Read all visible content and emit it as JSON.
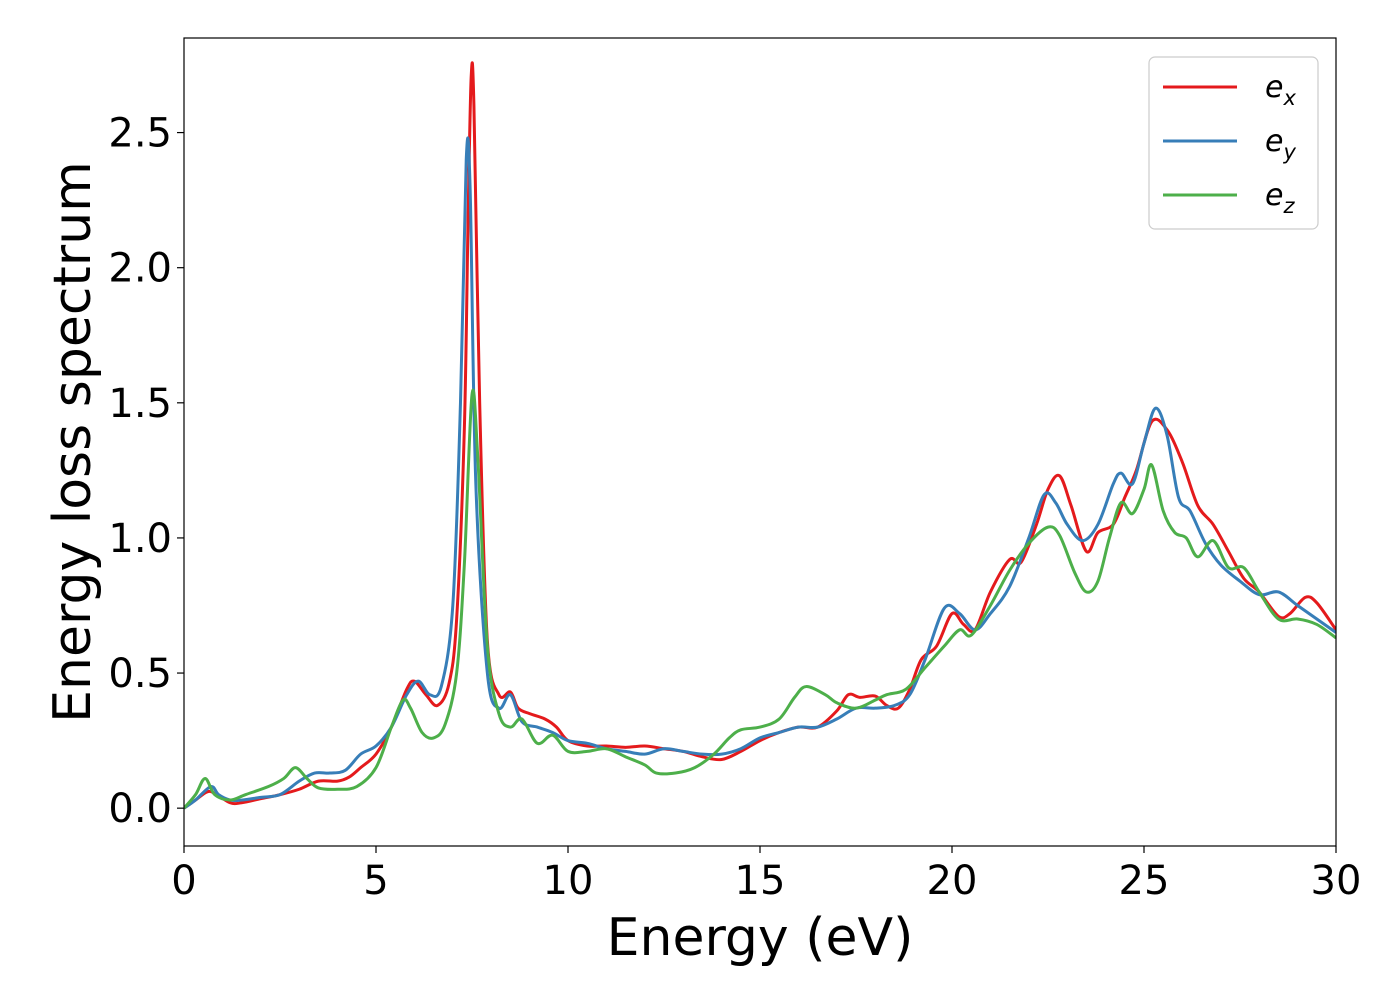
{
  "chart_data": {
    "type": "line",
    "title": "",
    "xlabel": "Energy (eV)",
    "ylabel": "Energy loss spectrum",
    "xlim": [
      0,
      30
    ],
    "ylim": [
      -0.14,
      2.85
    ],
    "xticks": [
      0,
      5,
      10,
      15,
      20,
      25,
      30
    ],
    "xtick_labels": [
      "0",
      "5",
      "10",
      "15",
      "20",
      "25",
      "30"
    ],
    "yticks": [
      0.0,
      0.5,
      1.0,
      1.5,
      2.0,
      2.5
    ],
    "ytick_labels": [
      "0.0",
      "0.5",
      "1.0",
      "1.5",
      "2.0",
      "2.5"
    ],
    "grid": false,
    "legend_position": "top-right",
    "series": [
      {
        "name": "ex",
        "legend_base": "e",
        "legend_sub": "x",
        "color": "#e41a1c",
        "points": [
          [
            0,
            0
          ],
          [
            0.3,
            0.03
          ],
          [
            0.6,
            0.06
          ],
          [
            0.8,
            0.055
          ],
          [
            1.2,
            0.02
          ],
          [
            1.5,
            0.02
          ],
          [
            2,
            0.035
          ],
          [
            2.5,
            0.05
          ],
          [
            3,
            0.07
          ],
          [
            3.5,
            0.1
          ],
          [
            4,
            0.1
          ],
          [
            4.3,
            0.115
          ],
          [
            4.6,
            0.15
          ],
          [
            5,
            0.2
          ],
          [
            5.4,
            0.3
          ],
          [
            5.8,
            0.44
          ],
          [
            6,
            0.47
          ],
          [
            6.3,
            0.42
          ],
          [
            6.6,
            0.38
          ],
          [
            6.9,
            0.46
          ],
          [
            7.1,
            0.7
          ],
          [
            7.3,
            1.4
          ],
          [
            7.4,
            2.2
          ],
          [
            7.48,
            2.71
          ],
          [
            7.55,
            2.6
          ],
          [
            7.7,
            1.5
          ],
          [
            7.9,
            0.62
          ],
          [
            8.2,
            0.42
          ],
          [
            8.5,
            0.43
          ],
          [
            8.7,
            0.37
          ],
          [
            9,
            0.35
          ],
          [
            9.4,
            0.33
          ],
          [
            9.7,
            0.3
          ],
          [
            10,
            0.25
          ],
          [
            10.5,
            0.23
          ],
          [
            11,
            0.23
          ],
          [
            11.5,
            0.225
          ],
          [
            12,
            0.23
          ],
          [
            12.5,
            0.22
          ],
          [
            13,
            0.21
          ],
          [
            13.5,
            0.19
          ],
          [
            14,
            0.18
          ],
          [
            14.5,
            0.21
          ],
          [
            15,
            0.25
          ],
          [
            15.5,
            0.28
          ],
          [
            16,
            0.3
          ],
          [
            16.5,
            0.3
          ],
          [
            17,
            0.36
          ],
          [
            17.3,
            0.42
          ],
          [
            17.6,
            0.41
          ],
          [
            18,
            0.415
          ],
          [
            18.3,
            0.38
          ],
          [
            18.6,
            0.37
          ],
          [
            18.9,
            0.44
          ],
          [
            19.2,
            0.55
          ],
          [
            19.6,
            0.6
          ],
          [
            20,
            0.72
          ],
          [
            20.3,
            0.68
          ],
          [
            20.6,
            0.66
          ],
          [
            21,
            0.8
          ],
          [
            21.5,
            0.92
          ],
          [
            21.8,
            0.91
          ],
          [
            22.2,
            1.05
          ],
          [
            22.5,
            1.18
          ],
          [
            22.8,
            1.23
          ],
          [
            23.1,
            1.12
          ],
          [
            23.5,
            0.95
          ],
          [
            23.8,
            1.02
          ],
          [
            24.2,
            1.05
          ],
          [
            24.5,
            1.15
          ],
          [
            24.8,
            1.25
          ],
          [
            25.2,
            1.43
          ],
          [
            25.6,
            1.4
          ],
          [
            26,
            1.28
          ],
          [
            26.4,
            1.12
          ],
          [
            26.8,
            1.05
          ],
          [
            27.2,
            0.95
          ],
          [
            27.6,
            0.85
          ],
          [
            28,
            0.8
          ],
          [
            28.5,
            0.71
          ],
          [
            28.8,
            0.72
          ],
          [
            29.2,
            0.78
          ],
          [
            29.5,
            0.76
          ],
          [
            30,
            0.66
          ]
        ]
      },
      {
        "name": "ey",
        "legend_base": "e",
        "legend_sub": "y",
        "color": "#377eb8",
        "points": [
          [
            0,
            0
          ],
          [
            0.3,
            0.03
          ],
          [
            0.7,
            0.08
          ],
          [
            0.9,
            0.05
          ],
          [
            1.2,
            0.03
          ],
          [
            1.5,
            0.03
          ],
          [
            2,
            0.04
          ],
          [
            2.5,
            0.05
          ],
          [
            3,
            0.1
          ],
          [
            3.4,
            0.13
          ],
          [
            3.8,
            0.13
          ],
          [
            4.2,
            0.14
          ],
          [
            4.6,
            0.2
          ],
          [
            5,
            0.23
          ],
          [
            5.4,
            0.3
          ],
          [
            5.8,
            0.42
          ],
          [
            6.1,
            0.47
          ],
          [
            6.4,
            0.42
          ],
          [
            6.7,
            0.45
          ],
          [
            7,
            0.75
          ],
          [
            7.2,
            1.5
          ],
          [
            7.35,
            2.4
          ],
          [
            7.45,
            2.3
          ],
          [
            7.6,
            1.2
          ],
          [
            7.9,
            0.5
          ],
          [
            8.2,
            0.37
          ],
          [
            8.5,
            0.42
          ],
          [
            8.8,
            0.32
          ],
          [
            9.2,
            0.3
          ],
          [
            9.6,
            0.28
          ],
          [
            10,
            0.25
          ],
          [
            10.5,
            0.24
          ],
          [
            11,
            0.22
          ],
          [
            11.5,
            0.21
          ],
          [
            12,
            0.2
          ],
          [
            12.5,
            0.22
          ],
          [
            13,
            0.21
          ],
          [
            13.5,
            0.2
          ],
          [
            14,
            0.2
          ],
          [
            14.5,
            0.22
          ],
          [
            15,
            0.26
          ],
          [
            15.5,
            0.28
          ],
          [
            16,
            0.3
          ],
          [
            16.5,
            0.3
          ],
          [
            17,
            0.33
          ],
          [
            17.5,
            0.37
          ],
          [
            18,
            0.37
          ],
          [
            18.5,
            0.38
          ],
          [
            18.9,
            0.42
          ],
          [
            19.3,
            0.55
          ],
          [
            19.8,
            0.74
          ],
          [
            20.2,
            0.72
          ],
          [
            20.6,
            0.66
          ],
          [
            21,
            0.72
          ],
          [
            21.5,
            0.82
          ],
          [
            22,
            1.0
          ],
          [
            22.4,
            1.16
          ],
          [
            22.7,
            1.13
          ],
          [
            23,
            1.05
          ],
          [
            23.4,
            0.99
          ],
          [
            23.8,
            1.05
          ],
          [
            24.2,
            1.2
          ],
          [
            24.4,
            1.24
          ],
          [
            24.7,
            1.2
          ],
          [
            25,
            1.35
          ],
          [
            25.3,
            1.48
          ],
          [
            25.6,
            1.38
          ],
          [
            25.9,
            1.15
          ],
          [
            26.2,
            1.1
          ],
          [
            26.6,
            0.98
          ],
          [
            27,
            0.9
          ],
          [
            27.5,
            0.84
          ],
          [
            28,
            0.79
          ],
          [
            28.5,
            0.8
          ],
          [
            29,
            0.75
          ],
          [
            29.5,
            0.7
          ],
          [
            30,
            0.65
          ]
        ]
      },
      {
        "name": "ez",
        "legend_base": "e",
        "legend_sub": "z",
        "color": "#4daf4a",
        "points": [
          [
            0,
            0
          ],
          [
            0.3,
            0.05
          ],
          [
            0.55,
            0.11
          ],
          [
            0.8,
            0.05
          ],
          [
            1.2,
            0.03
          ],
          [
            1.6,
            0.05
          ],
          [
            2.2,
            0.08
          ],
          [
            2.6,
            0.11
          ],
          [
            2.9,
            0.15
          ],
          [
            3.2,
            0.11
          ],
          [
            3.5,
            0.075
          ],
          [
            4,
            0.07
          ],
          [
            4.5,
            0.08
          ],
          [
            5,
            0.15
          ],
          [
            5.4,
            0.3
          ],
          [
            5.7,
            0.4
          ],
          [
            5.9,
            0.37
          ],
          [
            6.2,
            0.28
          ],
          [
            6.5,
            0.26
          ],
          [
            6.8,
            0.31
          ],
          [
            7.1,
            0.5
          ],
          [
            7.3,
            0.9
          ],
          [
            7.5,
            1.53
          ],
          [
            7.65,
            1.3
          ],
          [
            7.9,
            0.6
          ],
          [
            8.2,
            0.35
          ],
          [
            8.5,
            0.3
          ],
          [
            8.8,
            0.33
          ],
          [
            9.2,
            0.24
          ],
          [
            9.6,
            0.27
          ],
          [
            10,
            0.21
          ],
          [
            10.5,
            0.21
          ],
          [
            11,
            0.22
          ],
          [
            11.5,
            0.19
          ],
          [
            12,
            0.16
          ],
          [
            12.3,
            0.13
          ],
          [
            12.8,
            0.13
          ],
          [
            13.3,
            0.15
          ],
          [
            13.8,
            0.2
          ],
          [
            14.2,
            0.26
          ],
          [
            14.5,
            0.29
          ],
          [
            15,
            0.3
          ],
          [
            15.5,
            0.33
          ],
          [
            15.9,
            0.41
          ],
          [
            16.2,
            0.45
          ],
          [
            16.7,
            0.42
          ],
          [
            17,
            0.39
          ],
          [
            17.5,
            0.37
          ],
          [
            18,
            0.4
          ],
          [
            18.3,
            0.42
          ],
          [
            18.8,
            0.44
          ],
          [
            19.3,
            0.52
          ],
          [
            19.8,
            0.6
          ],
          [
            20.2,
            0.66
          ],
          [
            20.5,
            0.64
          ],
          [
            21,
            0.75
          ],
          [
            21.5,
            0.88
          ],
          [
            22,
            0.98
          ],
          [
            22.5,
            1.04
          ],
          [
            22.8,
            1.01
          ],
          [
            23.2,
            0.87
          ],
          [
            23.5,
            0.8
          ],
          [
            23.8,
            0.84
          ],
          [
            24.1,
            1.0
          ],
          [
            24.4,
            1.13
          ],
          [
            24.7,
            1.09
          ],
          [
            25,
            1.18
          ],
          [
            25.2,
            1.27
          ],
          [
            25.5,
            1.1
          ],
          [
            25.8,
            1.02
          ],
          [
            26.1,
            1.0
          ],
          [
            26.4,
            0.93
          ],
          [
            26.8,
            0.99
          ],
          [
            27.2,
            0.89
          ],
          [
            27.6,
            0.89
          ],
          [
            28,
            0.8
          ],
          [
            28.5,
            0.7
          ],
          [
            29,
            0.7
          ],
          [
            29.5,
            0.68
          ],
          [
            30,
            0.63
          ]
        ]
      }
    ]
  }
}
